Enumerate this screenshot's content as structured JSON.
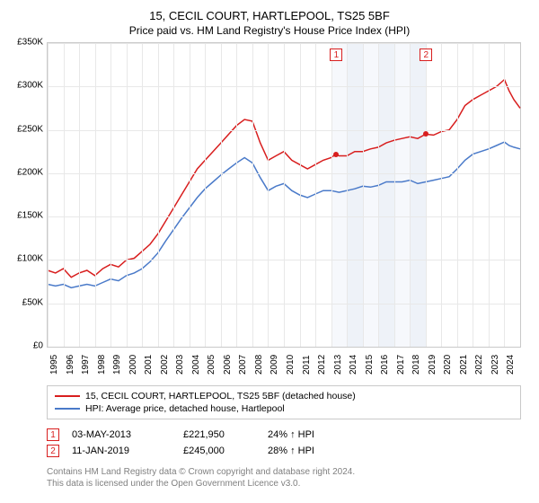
{
  "title": "15, CECIL COURT, HARTLEPOOL, TS25 5BF",
  "subtitle": "Price paid vs. HM Land Registry's House Price Index (HPI)",
  "chart": {
    "type": "line",
    "background_color": "#ffffff",
    "grid_color": "#e8e8e8",
    "border_color": "#c9c9c9",
    "ylim": [
      0,
      350000
    ],
    "ytick_step": 50000,
    "y_prefix": "£",
    "y_suffix": "K",
    "y_ticks": [
      "£0",
      "£50K",
      "£100K",
      "£150K",
      "£200K",
      "£250K",
      "£300K",
      "£350K"
    ],
    "xlim": [
      1995,
      2025
    ],
    "x_ticks": [
      1995,
      1996,
      1997,
      1998,
      1999,
      2000,
      2001,
      2002,
      2003,
      2004,
      2005,
      2006,
      2007,
      2008,
      2009,
      2010,
      2011,
      2012,
      2013,
      2014,
      2015,
      2016,
      2017,
      2018,
      2019,
      2020,
      2021,
      2022,
      2023,
      2024
    ],
    "alt_band_color": "#eef2f8",
    "alt_band_start": 2013,
    "alt_band_end": 2019,
    "series": [
      {
        "name": "15, CECIL COURT, HARTLEPOOL, TS25 5BF (detached house)",
        "color": "#d81e1e",
        "line_width": 1.5,
        "data": [
          [
            1995,
            88
          ],
          [
            1995.5,
            85
          ],
          [
            1996,
            90
          ],
          [
            1996.5,
            80
          ],
          [
            1997,
            85
          ],
          [
            1997.5,
            88
          ],
          [
            1998,
            82
          ],
          [
            1998.5,
            90
          ],
          [
            1999,
            95
          ],
          [
            1999.5,
            92
          ],
          [
            2000,
            100
          ],
          [
            2000.5,
            102
          ],
          [
            2001,
            110
          ],
          [
            2001.5,
            118
          ],
          [
            2002,
            130
          ],
          [
            2002.5,
            145
          ],
          [
            2003,
            160
          ],
          [
            2003.5,
            175
          ],
          [
            2004,
            190
          ],
          [
            2004.5,
            205
          ],
          [
            2005,
            215
          ],
          [
            2005.5,
            225
          ],
          [
            2006,
            235
          ],
          [
            2006.5,
            245
          ],
          [
            2007,
            255
          ],
          [
            2007.5,
            262
          ],
          [
            2008,
            260
          ],
          [
            2008.5,
            235
          ],
          [
            2009,
            215
          ],
          [
            2009.5,
            220
          ],
          [
            2010,
            225
          ],
          [
            2010.5,
            215
          ],
          [
            2011,
            210
          ],
          [
            2011.5,
            205
          ],
          [
            2012,
            210
          ],
          [
            2012.5,
            215
          ],
          [
            2013,
            218
          ],
          [
            2013.3,
            221.95
          ],
          [
            2013.5,
            220
          ],
          [
            2014,
            220
          ],
          [
            2014.5,
            225
          ],
          [
            2015,
            225
          ],
          [
            2015.5,
            228
          ],
          [
            2016,
            230
          ],
          [
            2016.5,
            235
          ],
          [
            2017,
            238
          ],
          [
            2017.5,
            240
          ],
          [
            2018,
            242
          ],
          [
            2018.5,
            240
          ],
          [
            2019,
            245
          ],
          [
            2019.5,
            244
          ],
          [
            2020,
            248
          ],
          [
            2020.5,
            250
          ],
          [
            2021,
            262
          ],
          [
            2021.5,
            278
          ],
          [
            2022,
            285
          ],
          [
            2022.5,
            290
          ],
          [
            2023,
            295
          ],
          [
            2023.5,
            300
          ],
          [
            2024,
            308
          ],
          [
            2024.3,
            295
          ],
          [
            2024.6,
            285
          ],
          [
            2025,
            275
          ]
        ]
      },
      {
        "name": "HPI: Average price, detached house, Hartlepool",
        "color": "#4a7ac9",
        "line_width": 1.5,
        "data": [
          [
            1995,
            72
          ],
          [
            1995.5,
            70
          ],
          [
            1996,
            72
          ],
          [
            1996.5,
            68
          ],
          [
            1997,
            70
          ],
          [
            1997.5,
            72
          ],
          [
            1998,
            70
          ],
          [
            1998.5,
            74
          ],
          [
            1999,
            78
          ],
          [
            1999.5,
            76
          ],
          [
            2000,
            82
          ],
          [
            2000.5,
            85
          ],
          [
            2001,
            90
          ],
          [
            2001.5,
            98
          ],
          [
            2002,
            108
          ],
          [
            2002.5,
            122
          ],
          [
            2003,
            135
          ],
          [
            2003.5,
            148
          ],
          [
            2004,
            160
          ],
          [
            2004.5,
            172
          ],
          [
            2005,
            182
          ],
          [
            2005.5,
            190
          ],
          [
            2006,
            198
          ],
          [
            2006.5,
            205
          ],
          [
            2007,
            212
          ],
          [
            2007.5,
            218
          ],
          [
            2008,
            212
          ],
          [
            2008.5,
            195
          ],
          [
            2009,
            180
          ],
          [
            2009.5,
            185
          ],
          [
            2010,
            188
          ],
          [
            2010.5,
            180
          ],
          [
            2011,
            175
          ],
          [
            2011.5,
            172
          ],
          [
            2012,
            176
          ],
          [
            2012.5,
            180
          ],
          [
            2013,
            180
          ],
          [
            2013.5,
            178
          ],
          [
            2014,
            180
          ],
          [
            2014.5,
            182
          ],
          [
            2015,
            185
          ],
          [
            2015.5,
            184
          ],
          [
            2016,
            186
          ],
          [
            2016.5,
            190
          ],
          [
            2017,
            190
          ],
          [
            2017.5,
            190
          ],
          [
            2018,
            192
          ],
          [
            2018.5,
            188
          ],
          [
            2019,
            190
          ],
          [
            2019.5,
            192
          ],
          [
            2020,
            194
          ],
          [
            2020.5,
            196
          ],
          [
            2021,
            205
          ],
          [
            2021.5,
            215
          ],
          [
            2022,
            222
          ],
          [
            2022.5,
            225
          ],
          [
            2023,
            228
          ],
          [
            2023.5,
            232
          ],
          [
            2024,
            236
          ],
          [
            2024.3,
            232
          ],
          [
            2024.6,
            230
          ],
          [
            2025,
            228
          ]
        ]
      }
    ],
    "sale_points": [
      {
        "x": 2013.33,
        "y": 221.95,
        "color": "#d81e1e"
      },
      {
        "x": 2019.03,
        "y": 245,
        "color": "#d81e1e"
      }
    ],
    "sale_markers": [
      {
        "label": "1",
        "x": 2013.33,
        "color": "#d81e1e"
      },
      {
        "label": "2",
        "x": 2019.03,
        "color": "#d81e1e"
      }
    ]
  },
  "legend": {
    "items": [
      {
        "color": "#d81e1e",
        "label": "15, CECIL COURT, HARTLEPOOL, TS25 5BF (detached house)"
      },
      {
        "color": "#4a7ac9",
        "label": "HPI: Average price, detached house, Hartlepool"
      }
    ]
  },
  "transactions": [
    {
      "marker": "1",
      "marker_color": "#d81e1e",
      "date": "03-MAY-2013",
      "price": "£221,950",
      "hpi": "24% ↑ HPI"
    },
    {
      "marker": "2",
      "marker_color": "#d81e1e",
      "date": "11-JAN-2019",
      "price": "£245,000",
      "hpi": "28% ↑ HPI"
    }
  ],
  "footer": {
    "line1": "Contains HM Land Registry data © Crown copyright and database right 2024.",
    "line2": "This data is licensed under the Open Government Licence v3.0."
  }
}
